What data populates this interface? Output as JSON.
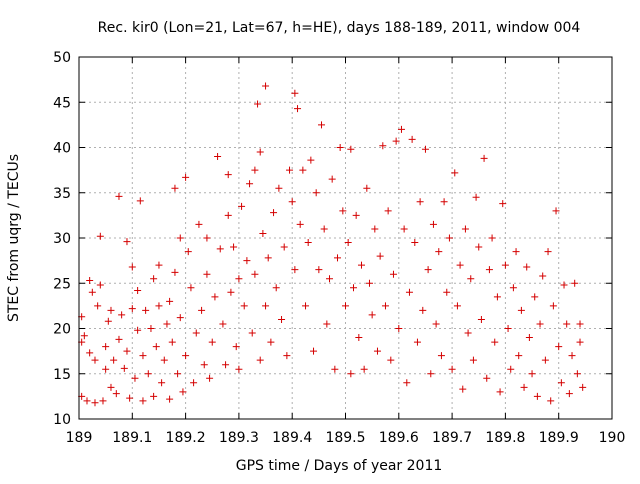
{
  "chart_data": {
    "type": "scatter",
    "title": "Rec. kir0 (Lon=21, Lat=67, h=HE), days 188-189, 2011, window 004",
    "xlabel": "GPS time / Days of year 2011",
    "ylabel": "STEC from uqrg / TECUs",
    "xlim": [
      189,
      190
    ],
    "ylim": [
      10,
      50
    ],
    "x_ticks": [
      "189",
      "189.1",
      "189.2",
      "189.3",
      "189.4",
      "189.5",
      "189.6",
      "189.7",
      "189.8",
      "189.9",
      "190"
    ],
    "x_tick_values": [
      189,
      189.1,
      189.2,
      189.3,
      189.4,
      189.5,
      189.6,
      189.7,
      189.8,
      189.9,
      190
    ],
    "y_ticks": [
      "10",
      "15",
      "20",
      "25",
      "30",
      "35",
      "40",
      "45",
      "50"
    ],
    "y_tick_values": [
      10,
      15,
      20,
      25,
      30,
      35,
      40,
      45,
      50
    ],
    "grid": true,
    "marker": "+",
    "marker_color": "#d40000",
    "points": [
      [
        189.005,
        12.5
      ],
      [
        189.005,
        18.5
      ],
      [
        189.005,
        21.3
      ],
      [
        189.01,
        19.2
      ],
      [
        189.015,
        12.0
      ],
      [
        189.02,
        17.3
      ],
      [
        189.02,
        25.3
      ],
      [
        189.025,
        24.0
      ],
      [
        189.03,
        11.8
      ],
      [
        189.03,
        16.5
      ],
      [
        189.035,
        22.5
      ],
      [
        189.04,
        24.8
      ],
      [
        189.04,
        30.2
      ],
      [
        189.045,
        12.0
      ],
      [
        189.05,
        15.5
      ],
      [
        189.05,
        18.0
      ],
      [
        189.055,
        20.8
      ],
      [
        189.06,
        13.5
      ],
      [
        189.06,
        22.0
      ],
      [
        189.065,
        16.5
      ],
      [
        189.07,
        12.8
      ],
      [
        189.075,
        34.6
      ],
      [
        189.075,
        18.8
      ],
      [
        189.08,
        21.5
      ],
      [
        189.085,
        15.6
      ],
      [
        189.09,
        29.6
      ],
      [
        189.09,
        17.5
      ],
      [
        189.095,
        12.3
      ],
      [
        189.1,
        22.2
      ],
      [
        189.1,
        26.8
      ],
      [
        189.105,
        14.5
      ],
      [
        189.11,
        19.8
      ],
      [
        189.11,
        24.2
      ],
      [
        189.115,
        34.1
      ],
      [
        189.12,
        12.0
      ],
      [
        189.12,
        17.0
      ],
      [
        189.125,
        22.0
      ],
      [
        189.13,
        15.0
      ],
      [
        189.135,
        20.0
      ],
      [
        189.14,
        25.5
      ],
      [
        189.14,
        12.5
      ],
      [
        189.145,
        18.0
      ],
      [
        189.15,
        27.0
      ],
      [
        189.15,
        22.5
      ],
      [
        189.155,
        14.0
      ],
      [
        189.16,
        16.5
      ],
      [
        189.165,
        20.5
      ],
      [
        189.17,
        12.2
      ],
      [
        189.17,
        23.0
      ],
      [
        189.175,
        18.5
      ],
      [
        189.18,
        35.5
      ],
      [
        189.18,
        26.2
      ],
      [
        189.185,
        15.0
      ],
      [
        189.19,
        30.0
      ],
      [
        189.19,
        21.2
      ],
      [
        189.195,
        13.0
      ],
      [
        189.2,
        36.7
      ],
      [
        189.2,
        17.0
      ],
      [
        189.205,
        28.5
      ],
      [
        189.21,
        24.5
      ],
      [
        189.215,
        14.0
      ],
      [
        189.22,
        19.5
      ],
      [
        189.225,
        31.5
      ],
      [
        189.23,
        22.0
      ],
      [
        189.235,
        16.0
      ],
      [
        189.24,
        26.0
      ],
      [
        189.24,
        30.0
      ],
      [
        189.245,
        14.5
      ],
      [
        189.25,
        18.5
      ],
      [
        189.255,
        23.5
      ],
      [
        189.26,
        39.0
      ],
      [
        189.265,
        28.8
      ],
      [
        189.27,
        20.5
      ],
      [
        189.275,
        16.0
      ],
      [
        189.28,
        37.0
      ],
      [
        189.28,
        32.5
      ],
      [
        189.285,
        24.0
      ],
      [
        189.29,
        29.0
      ],
      [
        189.295,
        18.0
      ],
      [
        189.3,
        25.5
      ],
      [
        189.3,
        15.5
      ],
      [
        189.305,
        33.5
      ],
      [
        189.31,
        22.5
      ],
      [
        189.315,
        27.5
      ],
      [
        189.32,
        36.0
      ],
      [
        189.325,
        19.5
      ],
      [
        189.33,
        37.5
      ],
      [
        189.33,
        26.0
      ],
      [
        189.335,
        44.8
      ],
      [
        189.34,
        39.5
      ],
      [
        189.34,
        16.5
      ],
      [
        189.345,
        30.5
      ],
      [
        189.35,
        22.5
      ],
      [
        189.35,
        46.8
      ],
      [
        189.355,
        27.8
      ],
      [
        189.36,
        18.5
      ],
      [
        189.365,
        32.8
      ],
      [
        189.37,
        24.5
      ],
      [
        189.375,
        35.5
      ],
      [
        189.38,
        21.0
      ],
      [
        189.385,
        29.0
      ],
      [
        189.39,
        17.0
      ],
      [
        189.395,
        37.5
      ],
      [
        189.4,
        34.0
      ],
      [
        189.405,
        46.0
      ],
      [
        189.405,
        26.5
      ],
      [
        189.41,
        44.3
      ],
      [
        189.415,
        31.5
      ],
      [
        189.42,
        37.5
      ],
      [
        189.425,
        22.5
      ],
      [
        189.43,
        29.5
      ],
      [
        189.435,
        38.6
      ],
      [
        189.44,
        17.5
      ],
      [
        189.445,
        35.0
      ],
      [
        189.45,
        26.5
      ],
      [
        189.455,
        42.5
      ],
      [
        189.46,
        31.0
      ],
      [
        189.465,
        20.5
      ],
      [
        189.47,
        25.5
      ],
      [
        189.475,
        36.5
      ],
      [
        189.48,
        15.5
      ],
      [
        189.485,
        27.8
      ],
      [
        189.49,
        40.0
      ],
      [
        189.495,
        33.0
      ],
      [
        189.5,
        22.5
      ],
      [
        189.505,
        29.5
      ],
      [
        189.51,
        39.8
      ],
      [
        189.51,
        15.0
      ],
      [
        189.515,
        24.5
      ],
      [
        189.52,
        32.5
      ],
      [
        189.525,
        19.0
      ],
      [
        189.53,
        27.0
      ],
      [
        189.535,
        15.5
      ],
      [
        189.54,
        35.5
      ],
      [
        189.545,
        25.0
      ],
      [
        189.55,
        21.5
      ],
      [
        189.555,
        31.0
      ],
      [
        189.56,
        17.5
      ],
      [
        189.565,
        28.0
      ],
      [
        189.57,
        40.2
      ],
      [
        189.575,
        22.5
      ],
      [
        189.58,
        33.0
      ],
      [
        189.585,
        16.5
      ],
      [
        189.59,
        26.0
      ],
      [
        189.595,
        40.7
      ],
      [
        189.6,
        20.0
      ],
      [
        189.605,
        42.0
      ],
      [
        189.61,
        31.0
      ],
      [
        189.615,
        14.0
      ],
      [
        189.62,
        24.0
      ],
      [
        189.625,
        40.9
      ],
      [
        189.63,
        29.5
      ],
      [
        189.635,
        18.5
      ],
      [
        189.64,
        34.0
      ],
      [
        189.645,
        22.0
      ],
      [
        189.65,
        39.8
      ],
      [
        189.655,
        26.5
      ],
      [
        189.66,
        15.0
      ],
      [
        189.665,
        31.5
      ],
      [
        189.67,
        20.5
      ],
      [
        189.675,
        28.5
      ],
      [
        189.68,
        17.0
      ],
      [
        189.685,
        34.0
      ],
      [
        189.69,
        24.0
      ],
      [
        189.695,
        30.0
      ],
      [
        189.7,
        15.5
      ],
      [
        189.705,
        37.2
      ],
      [
        189.71,
        22.5
      ],
      [
        189.715,
        27.0
      ],
      [
        189.72,
        13.3
      ],
      [
        189.725,
        31.0
      ],
      [
        189.73,
        19.5
      ],
      [
        189.735,
        25.5
      ],
      [
        189.74,
        16.5
      ],
      [
        189.745,
        34.5
      ],
      [
        189.75,
        29.0
      ],
      [
        189.755,
        21.0
      ],
      [
        189.76,
        38.8
      ],
      [
        189.765,
        14.5
      ],
      [
        189.77,
        26.5
      ],
      [
        189.775,
        30.0
      ],
      [
        189.78,
        18.5
      ],
      [
        189.785,
        23.5
      ],
      [
        189.79,
        13.0
      ],
      [
        189.795,
        33.8
      ],
      [
        189.8,
        27.0
      ],
      [
        189.805,
        20.0
      ],
      [
        189.81,
        15.5
      ],
      [
        189.815,
        24.5
      ],
      [
        189.82,
        28.5
      ],
      [
        189.825,
        17.0
      ],
      [
        189.83,
        22.0
      ],
      [
        189.835,
        13.5
      ],
      [
        189.84,
        26.8
      ],
      [
        189.845,
        19.0
      ],
      [
        189.85,
        15.0
      ],
      [
        189.855,
        23.5
      ],
      [
        189.86,
        12.5
      ],
      [
        189.865,
        20.5
      ],
      [
        189.87,
        25.8
      ],
      [
        189.875,
        16.5
      ],
      [
        189.88,
        28.5
      ],
      [
        189.885,
        12.0
      ],
      [
        189.89,
        22.5
      ],
      [
        189.895,
        33.0
      ],
      [
        189.9,
        18.0
      ],
      [
        189.905,
        14.0
      ],
      [
        189.91,
        24.8
      ],
      [
        189.915,
        20.5
      ],
      [
        189.92,
        12.8
      ],
      [
        189.925,
        17.0
      ],
      [
        189.93,
        25.0
      ],
      [
        189.935,
        15.0
      ],
      [
        189.94,
        20.5
      ],
      [
        189.94,
        18.5
      ],
      [
        189.945,
        13.5
      ]
    ]
  }
}
